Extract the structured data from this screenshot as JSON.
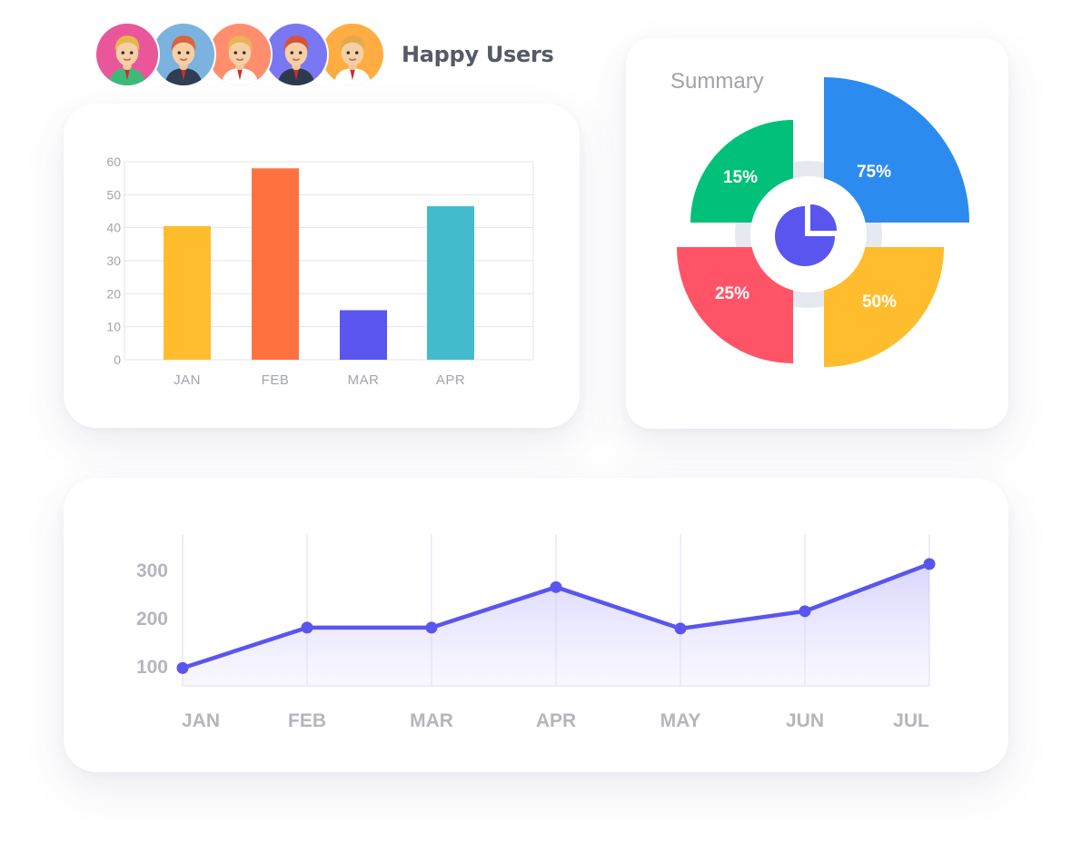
{
  "header": {
    "users_label": "Happy Users",
    "avatars": [
      {
        "name": "avatar-1",
        "bg": "#e9579a",
        "hair": "#e4b84a",
        "shirt": "#3cba7a"
      },
      {
        "name": "avatar-2",
        "bg": "#7bb2e0",
        "hair": "#d9653a",
        "shirt": "#2f3e52"
      },
      {
        "name": "avatar-3",
        "bg": "#ff8e6e",
        "hair": "#e9b457",
        "shirt": "#ffffff"
      },
      {
        "name": "avatar-4",
        "bg": "#7a77f2",
        "hair": "#d5533c",
        "shirt": "#2d3a4e"
      },
      {
        "name": "avatar-5",
        "bg": "#ffad42",
        "hair": "#e4a94e",
        "shirt": "#ffffff"
      }
    ]
  },
  "chart_data": [
    {
      "type": "bar",
      "title": "",
      "categories": [
        "JAN",
        "FEB",
        "MAR",
        "APR"
      ],
      "values": [
        40.5,
        58,
        15,
        46.5
      ],
      "colors": [
        "#ffbd2e",
        "#ff7240",
        "#5a55ee",
        "#42bccc"
      ],
      "yticks": [
        0,
        10,
        20,
        30,
        40,
        50,
        60
      ],
      "ylim": [
        0,
        60
      ],
      "grid": true
    },
    {
      "type": "pie",
      "title": "Summary",
      "slices": [
        {
          "label": "75%",
          "value": 75,
          "color": "#2c8bef",
          "position": "top-right"
        },
        {
          "label": "50%",
          "value": 50,
          "color": "#ffbd2e",
          "position": "bottom-right"
        },
        {
          "label": "25%",
          "value": 25,
          "color": "#ff5468",
          "position": "bottom-left"
        },
        {
          "label": "15%",
          "value": 15,
          "color": "#00c07a",
          "position": "top-left"
        }
      ],
      "center_icon": "pie-chart-icon"
    },
    {
      "type": "area",
      "title": "",
      "x": [
        "JAN",
        "FEB",
        "MAR",
        "APR",
        "MAY",
        "JUN",
        "JUL"
      ],
      "values": [
        97,
        181,
        181,
        265,
        179,
        215,
        313
      ],
      "yticks": [
        100,
        200,
        300
      ],
      "ylim": [
        60,
        375
      ],
      "color": "#5a55ee",
      "grid": true
    }
  ]
}
